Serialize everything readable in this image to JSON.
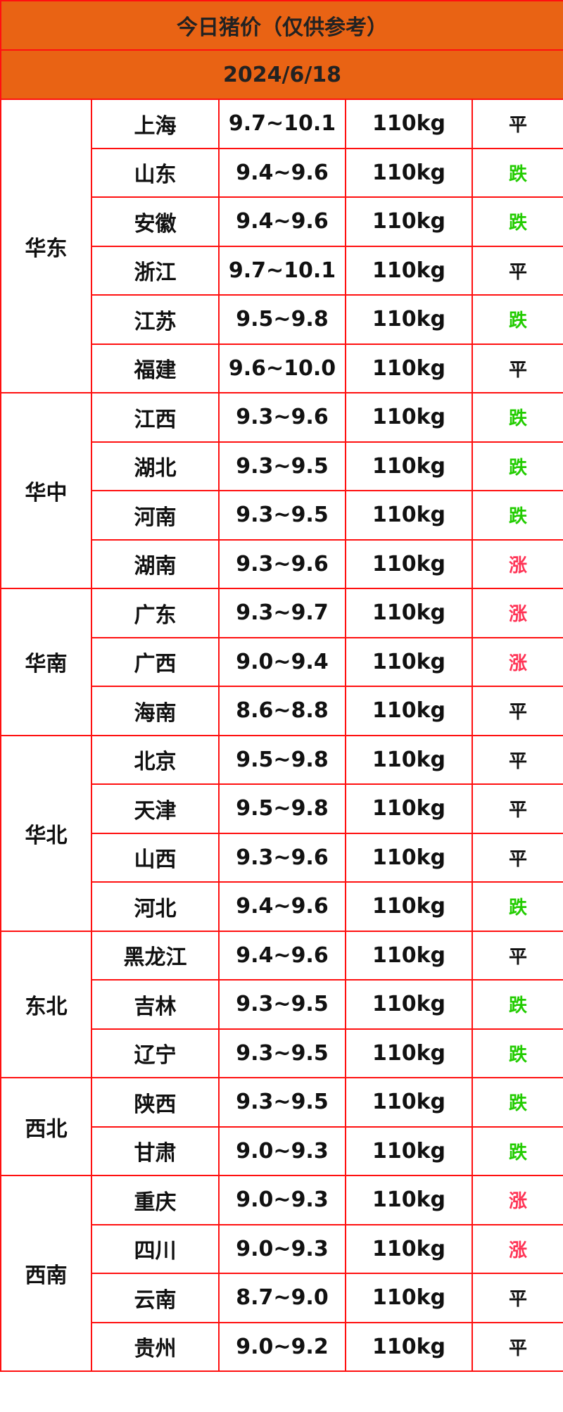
{
  "title": "今日猪价（仅供参考）",
  "date": "2024/6/18",
  "colors": {
    "header_bg": "#e96314",
    "border": "#ff1010",
    "down": "#22cc00",
    "up": "#ff3355",
    "flat": "#111111"
  },
  "regions": [
    {
      "name": "华东",
      "rows": [
        {
          "province": "上海",
          "price": "9.7~10.1",
          "weight": "110kg",
          "trend": "平"
        },
        {
          "province": "山东",
          "price": "9.4~9.6",
          "weight": "110kg",
          "trend": "跌"
        },
        {
          "province": "安徽",
          "price": "9.4~9.6",
          "weight": "110kg",
          "trend": "跌"
        },
        {
          "province": "浙江",
          "price": "9.7~10.1",
          "weight": "110kg",
          "trend": "平"
        },
        {
          "province": "江苏",
          "price": "9.5~9.8",
          "weight": "110kg",
          "trend": "跌"
        },
        {
          "province": "福建",
          "price": "9.6~10.0",
          "weight": "110kg",
          "trend": "平"
        }
      ]
    },
    {
      "name": "华中",
      "rows": [
        {
          "province": "江西",
          "price": "9.3~9.6",
          "weight": "110kg",
          "trend": "跌"
        },
        {
          "province": "湖北",
          "price": "9.3~9.5",
          "weight": "110kg",
          "trend": "跌"
        },
        {
          "province": "河南",
          "price": "9.3~9.5",
          "weight": "110kg",
          "trend": "跌"
        },
        {
          "province": "湖南",
          "price": "9.3~9.6",
          "weight": "110kg",
          "trend": "涨"
        }
      ]
    },
    {
      "name": "华南",
      "rows": [
        {
          "province": "广东",
          "price": "9.3~9.7",
          "weight": "110kg",
          "trend": "涨"
        },
        {
          "province": "广西",
          "price": "9.0~9.4",
          "weight": "110kg",
          "trend": "涨"
        },
        {
          "province": "海南",
          "price": "8.6~8.8",
          "weight": "110kg",
          "trend": "平"
        }
      ]
    },
    {
      "name": "华北",
      "rows": [
        {
          "province": "北京",
          "price": "9.5~9.8",
          "weight": "110kg",
          "trend": "平"
        },
        {
          "province": "天津",
          "price": "9.5~9.8",
          "weight": "110kg",
          "trend": "平"
        },
        {
          "province": "山西",
          "price": "9.3~9.6",
          "weight": "110kg",
          "trend": "平"
        },
        {
          "province": "河北",
          "price": "9.4~9.6",
          "weight": "110kg",
          "trend": "跌"
        }
      ]
    },
    {
      "name": "东北",
      "rows": [
        {
          "province": "黑龙江",
          "price": "9.4~9.6",
          "weight": "110kg",
          "trend": "平"
        },
        {
          "province": "吉林",
          "price": "9.3~9.5",
          "weight": "110kg",
          "trend": "跌"
        },
        {
          "province": "辽宁",
          "price": "9.3~9.5",
          "weight": "110kg",
          "trend": "跌"
        }
      ]
    },
    {
      "name": "西北",
      "rows": [
        {
          "province": "陕西",
          "price": "9.3~9.5",
          "weight": "110kg",
          "trend": "跌"
        },
        {
          "province": "甘肃",
          "price": "9.0~9.3",
          "weight": "110kg",
          "trend": "跌"
        }
      ]
    },
    {
      "name": "西南",
      "rows": [
        {
          "province": "重庆",
          "price": "9.0~9.3",
          "weight": "110kg",
          "trend": "涨"
        },
        {
          "province": "四川",
          "price": "9.0~9.3",
          "weight": "110kg",
          "trend": "涨"
        },
        {
          "province": "云南",
          "price": "8.7~9.0",
          "weight": "110kg",
          "trend": "平"
        },
        {
          "province": "贵州",
          "price": "9.0~9.2",
          "weight": "110kg",
          "trend": "平"
        }
      ]
    }
  ]
}
